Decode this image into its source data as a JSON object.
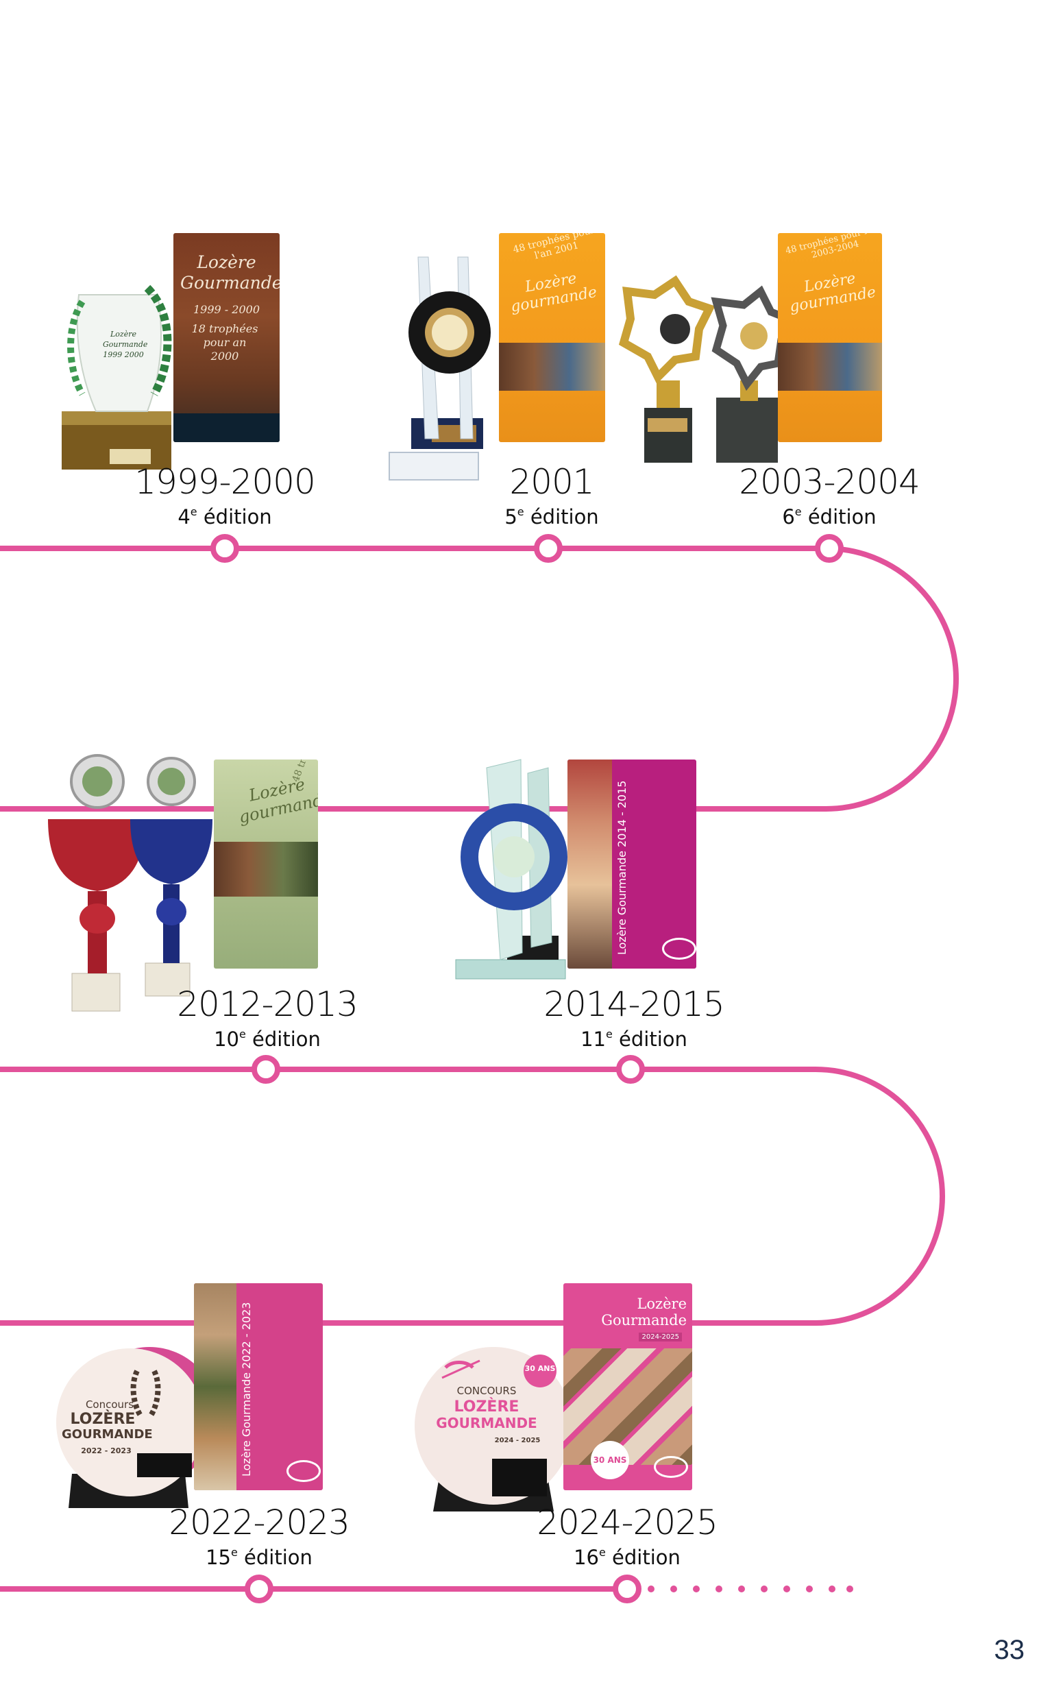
{
  "page": {
    "number": "33"
  },
  "accent_color": "#e2529a",
  "editions": [
    {
      "years": "1999-2000",
      "edition_number": "4",
      "edition_suffix": "e",
      "edition_word": "édition"
    },
    {
      "years": "2001",
      "edition_number": "5",
      "edition_suffix": "e",
      "edition_word": "édition"
    },
    {
      "years": "2003-2004",
      "edition_number": "6",
      "edition_suffix": "e",
      "edition_word": "édition"
    },
    {
      "years": "2012-2013",
      "edition_number": "10",
      "edition_suffix": "e",
      "edition_word": "édition"
    },
    {
      "years": "2014-2015",
      "edition_number": "11",
      "edition_suffix": "e",
      "edition_word": "édition"
    },
    {
      "years": "2022-2023",
      "edition_number": "15",
      "edition_suffix": "e",
      "edition_word": "édition"
    },
    {
      "years": "2024-2025",
      "edition_number": "16",
      "edition_suffix": "e",
      "edition_word": "édition"
    }
  ],
  "booklets": {
    "b1999": {
      "title": "Lozère Gourmande",
      "subtitle": "1999 - 2000",
      "tagline": "18 trophées pour an 2000"
    },
    "b2001": {
      "tagline": "48 trophées pour l'an 2001",
      "title": "Lozère gourmande"
    },
    "b2003": {
      "tagline": "48 trophées pour l'an 2003-2004",
      "title": "Lozère gourmande"
    },
    "b2012": {
      "tagline": "48 tr",
      "title": "Lozère gourmand"
    },
    "b2014": {
      "spine": "Lozère Gourmande 2014 - 2015"
    },
    "b2022": {
      "spine": "Lozère Gourmande 2022 - 2023"
    },
    "b2024": {
      "title": "Lozère Gourmande",
      "years": "2024-2025",
      "badge": "30 ANS"
    }
  },
  "trophies": {
    "t1999": {
      "text": "Lozère Gourmande 1999 2000"
    },
    "t2022": {
      "small": "Concours",
      "line1": "LOZÈRE",
      "line2": "GOURMANDE",
      "years": "2022 - 2023"
    },
    "t2024": {
      "small": "CONCOURS",
      "line1": "LOZÈRE",
      "line2": "GOURMANDE",
      "years": "2024 - 2025",
      "badge": "30 ANS"
    }
  }
}
